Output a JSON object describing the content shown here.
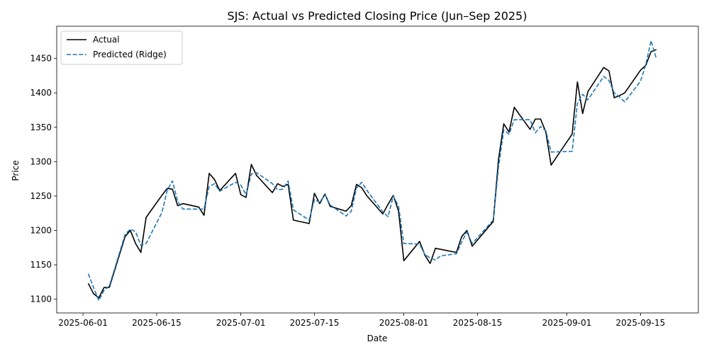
{
  "chart_data": {
    "type": "line",
    "title": "SJS: Actual vs Predicted Closing Price (Jun–Sep 2025)",
    "xlabel": "Date",
    "ylabel": "Price",
    "xlim": [
      "2025-05-27",
      "2025-09-26"
    ],
    "ylim": [
      1080,
      1497
    ],
    "x_ticks": [
      "2025-06-01",
      "2025-06-15",
      "2025-07-01",
      "2025-07-15",
      "2025-08-01",
      "2025-08-15",
      "2025-09-01",
      "2025-09-15"
    ],
    "y_ticks": [
      1100,
      1150,
      1200,
      1250,
      1300,
      1350,
      1400,
      1450
    ],
    "grid": false,
    "legend": "top-left",
    "series": [
      {
        "name": "Actual",
        "color": "#000000",
        "style": "solid",
        "points": [
          [
            "2025-06-02",
            1123
          ],
          [
            "2025-06-03",
            1108
          ],
          [
            "2025-06-04",
            1102
          ],
          [
            "2025-06-05",
            1117
          ],
          [
            "2025-06-06",
            1117
          ],
          [
            "2025-06-09",
            1191
          ],
          [
            "2025-06-10",
            1200
          ],
          [
            "2025-06-11",
            1181
          ],
          [
            "2025-06-12",
            1168
          ],
          [
            "2025-06-13",
            1219
          ],
          [
            "2025-06-16",
            1251
          ],
          [
            "2025-06-17",
            1261
          ],
          [
            "2025-06-18",
            1260
          ],
          [
            "2025-06-19",
            1236
          ],
          [
            "2025-06-20",
            1239
          ],
          [
            "2025-06-23",
            1234
          ],
          [
            "2025-06-24",
            1222
          ],
          [
            "2025-06-25",
            1283
          ],
          [
            "2025-06-26",
            1274
          ],
          [
            "2025-06-27",
            1258
          ],
          [
            "2025-06-30",
            1283
          ],
          [
            "2025-07-01",
            1252
          ],
          [
            "2025-07-02",
            1248
          ],
          [
            "2025-07-03",
            1296
          ],
          [
            "2025-07-04",
            1280
          ],
          [
            "2025-07-07",
            1255
          ],
          [
            "2025-07-08",
            1268
          ],
          [
            "2025-07-09",
            1264
          ],
          [
            "2025-07-10",
            1267
          ],
          [
            "2025-07-11",
            1215
          ],
          [
            "2025-07-14",
            1210
          ],
          [
            "2025-07-15",
            1254
          ],
          [
            "2025-07-16",
            1239
          ],
          [
            "2025-07-17",
            1253
          ],
          [
            "2025-07-18",
            1235
          ],
          [
            "2025-07-21",
            1228
          ],
          [
            "2025-07-22",
            1236
          ],
          [
            "2025-07-23",
            1267
          ],
          [
            "2025-07-24",
            1262
          ],
          [
            "2025-07-25",
            1250
          ],
          [
            "2025-07-28",
            1224
          ],
          [
            "2025-07-29",
            1238
          ],
          [
            "2025-07-30",
            1251
          ],
          [
            "2025-07-31",
            1228
          ],
          [
            "2025-08-01",
            1156
          ],
          [
            "2025-08-04",
            1184
          ],
          [
            "2025-08-05",
            1164
          ],
          [
            "2025-08-06",
            1152
          ],
          [
            "2025-08-07",
            1174
          ],
          [
            "2025-08-11",
            1168
          ],
          [
            "2025-08-12",
            1191
          ],
          [
            "2025-08-13",
            1200
          ],
          [
            "2025-08-14",
            1177
          ],
          [
            "2025-08-18",
            1213
          ],
          [
            "2025-08-19",
            1303
          ],
          [
            "2025-08-20",
            1355
          ],
          [
            "2025-08-21",
            1343
          ],
          [
            "2025-08-22",
            1379
          ],
          [
            "2025-08-25",
            1347
          ],
          [
            "2025-08-26",
            1362
          ],
          [
            "2025-08-27",
            1362
          ],
          [
            "2025-08-28",
            1343
          ],
          [
            "2025-08-29",
            1295
          ],
          [
            "2025-09-02",
            1340
          ],
          [
            "2025-09-03",
            1416
          ],
          [
            "2025-09-04",
            1370
          ],
          [
            "2025-09-05",
            1402
          ],
          [
            "2025-09-08",
            1437
          ],
          [
            "2025-09-09",
            1432
          ],
          [
            "2025-09-10",
            1393
          ],
          [
            "2025-09-11",
            1396
          ],
          [
            "2025-09-12",
            1400
          ],
          [
            "2025-09-15",
            1433
          ],
          [
            "2025-09-16",
            1440
          ],
          [
            "2025-09-17",
            1460
          ],
          [
            "2025-09-18",
            1463
          ]
        ]
      },
      {
        "name": "Predicted (Ridge)",
        "color": "#1f77b4",
        "style": "dashed",
        "points": [
          [
            "2025-06-02",
            1137
          ],
          [
            "2025-06-03",
            1117
          ],
          [
            "2025-06-04",
            1098
          ],
          [
            "2025-06-05",
            1113
          ],
          [
            "2025-06-06",
            1119
          ],
          [
            "2025-06-09",
            1194
          ],
          [
            "2025-06-10",
            1202
          ],
          [
            "2025-06-11",
            1198
          ],
          [
            "2025-06-12",
            1178
          ],
          [
            "2025-06-13",
            1181
          ],
          [
            "2025-06-16",
            1226
          ],
          [
            "2025-06-17",
            1258
          ],
          [
            "2025-06-18",
            1272
          ],
          [
            "2025-06-19",
            1242
          ],
          [
            "2025-06-20",
            1231
          ],
          [
            "2025-06-23",
            1231
          ],
          [
            "2025-06-24",
            1231
          ],
          [
            "2025-06-25",
            1264
          ],
          [
            "2025-06-26",
            1268
          ],
          [
            "2025-06-27",
            1257
          ],
          [
            "2025-06-30",
            1270
          ],
          [
            "2025-07-01",
            1266
          ],
          [
            "2025-07-02",
            1252
          ],
          [
            "2025-07-03",
            1282
          ],
          [
            "2025-07-04",
            1284
          ],
          [
            "2025-07-07",
            1268
          ],
          [
            "2025-07-08",
            1259
          ],
          [
            "2025-07-09",
            1260
          ],
          [
            "2025-07-10",
            1272
          ],
          [
            "2025-07-11",
            1230
          ],
          [
            "2025-07-14",
            1215
          ],
          [
            "2025-07-15",
            1245
          ],
          [
            "2025-07-16",
            1241
          ],
          [
            "2025-07-17",
            1252
          ],
          [
            "2025-07-18",
            1237
          ],
          [
            "2025-07-21",
            1221
          ],
          [
            "2025-07-22",
            1228
          ],
          [
            "2025-07-23",
            1262
          ],
          [
            "2025-07-24",
            1270
          ],
          [
            "2025-07-25",
            1258
          ],
          [
            "2025-07-28",
            1227
          ],
          [
            "2025-07-29",
            1220
          ],
          [
            "2025-07-30",
            1250
          ],
          [
            "2025-07-31",
            1235
          ],
          [
            "2025-08-01",
            1181
          ],
          [
            "2025-08-04",
            1180
          ],
          [
            "2025-08-05",
            1165
          ],
          [
            "2025-08-06",
            1160
          ],
          [
            "2025-08-07",
            1157
          ],
          [
            "2025-08-08",
            1163
          ],
          [
            "2025-08-11",
            1166
          ],
          [
            "2025-08-12",
            1183
          ],
          [
            "2025-08-13",
            1198
          ],
          [
            "2025-08-14",
            1181
          ],
          [
            "2025-08-18",
            1215
          ],
          [
            "2025-08-19",
            1292
          ],
          [
            "2025-08-20",
            1346
          ],
          [
            "2025-08-21",
            1340
          ],
          [
            "2025-08-22",
            1361
          ],
          [
            "2025-08-25",
            1361
          ],
          [
            "2025-08-26",
            1342
          ],
          [
            "2025-08-27",
            1351
          ],
          [
            "2025-08-28",
            1345
          ],
          [
            "2025-08-29",
            1314
          ],
          [
            "2025-09-02",
            1315
          ],
          [
            "2025-09-03",
            1385
          ],
          [
            "2025-09-04",
            1398
          ],
          [
            "2025-09-05",
            1390
          ],
          [
            "2025-09-08",
            1424
          ],
          [
            "2025-09-09",
            1418
          ],
          [
            "2025-09-10",
            1400
          ],
          [
            "2025-09-11",
            1394
          ],
          [
            "2025-09-12",
            1387
          ],
          [
            "2025-09-15",
            1417
          ],
          [
            "2025-09-16",
            1441
          ],
          [
            "2025-09-17",
            1476
          ],
          [
            "2025-09-18",
            1450
          ]
        ]
      }
    ]
  }
}
